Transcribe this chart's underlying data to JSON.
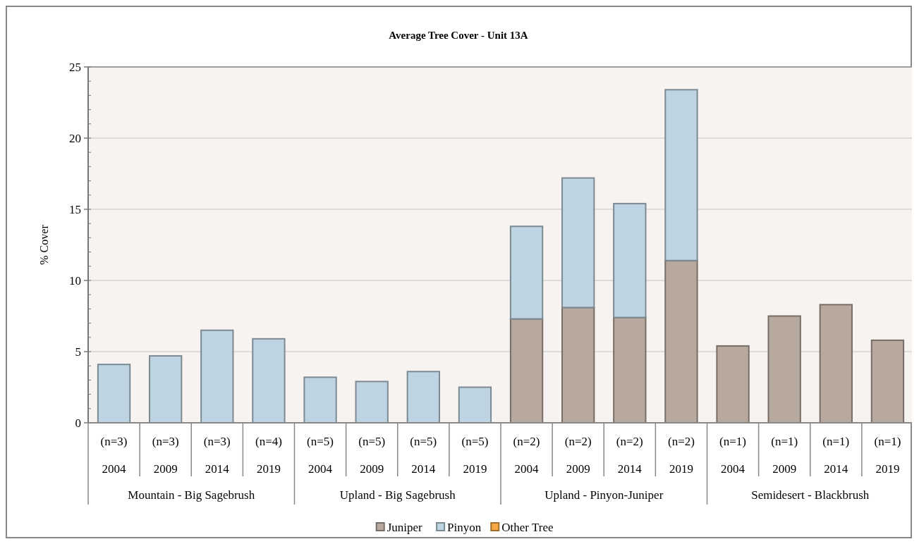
{
  "chart_data": {
    "type": "bar",
    "title": "Average Tree Cover - Unit 13A",
    "ylabel": "% Cover",
    "stacked": true,
    "categories": [
      "(n=3)\n2004",
      "(n=3)\n2009",
      "(n=3)\n2014",
      "(n=4)\n2019",
      "(n=5)\n2004",
      "(n=5)\n2009",
      "(n=5)\n2014",
      "(n=5)\n2019",
      "(n=2)\n2004",
      "(n=2)\n2009",
      "(n=2)\n2014",
      "(n=2)\n2019",
      "(n=1)\n2004",
      "(n=1)\n2009",
      "(n=1)\n2014",
      "(n=1)\n2019"
    ],
    "annotations": [
      "Mountain - Big Sagebrush",
      "Upland - Big Sagebrush",
      "Upland - Pinyon-Juniper",
      "Semidesert - Blackbrush"
    ],
    "series": [
      {
        "name": "Juniper",
        "color": "#b8a99e",
        "values": [
          0,
          0,
          0,
          0,
          0,
          0,
          0,
          0,
          7.3,
          8.1,
          7.4,
          11.4,
          5.4,
          7.5,
          8.3,
          5.8
        ]
      },
      {
        "name": "Pinyon",
        "color": "#bed4e2",
        "values": [
          4.1,
          4.7,
          6.5,
          5.9,
          3.2,
          2.9,
          3.6,
          2.5,
          6.5,
          9.1,
          8.0,
          12.0,
          0,
          0,
          0,
          0
        ]
      },
      {
        "name": "Other Tree",
        "color": "#f7a845",
        "values": [
          0,
          0,
          0,
          0,
          0,
          0,
          0,
          0,
          0,
          0,
          0,
          0,
          0,
          0,
          0,
          0
        ]
      }
    ],
    "ylim": [
      0,
      25
    ],
    "yticks": [
      0,
      5,
      10,
      15,
      20,
      25
    ],
    "grid": "y",
    "legend": "bottom"
  }
}
